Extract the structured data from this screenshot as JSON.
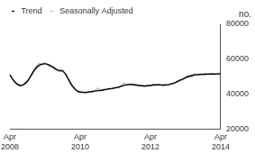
{
  "chart_data": {
    "type": "line",
    "ylabel": "no.",
    "categories": [
      "Apr 2008",
      null,
      null,
      null,
      null,
      null,
      null,
      null,
      null,
      null,
      null,
      null,
      null,
      null,
      null,
      null,
      null,
      null,
      null,
      null,
      null,
      null,
      null,
      null,
      "Apr 2010",
      null,
      null,
      null,
      null,
      null,
      null,
      null,
      null,
      null,
      null,
      null,
      null,
      null,
      null,
      null,
      null,
      null,
      null,
      null,
      null,
      null,
      null,
      null,
      "Apr 2012",
      null,
      null,
      null,
      null,
      null,
      null,
      null,
      null,
      null,
      null,
      null,
      null,
      null,
      null,
      null,
      null,
      null,
      null,
      null,
      null,
      null,
      null,
      null,
      "Apr 2014"
    ],
    "series": [
      {
        "name": "Trend",
        "color": "#000000",
        "values": [
          51000,
          48500,
          46500,
          45200,
          45000,
          45800,
          47500,
          50000,
          52800,
          55000,
          56500,
          57200,
          57400,
          57000,
          56200,
          55000,
          54000,
          53500,
          53200,
          51500,
          48500,
          45500,
          43300,
          41800,
          41200,
          41000,
          41000,
          41200,
          41500,
          41800,
          42000,
          42200,
          42500,
          42800,
          43000,
          43300,
          43600,
          44000,
          44500,
          45000,
          45400,
          45600,
          45500,
          45200,
          45000,
          44800,
          44700,
          44800,
          45000,
          45200,
          45300,
          45300,
          45200,
          45200,
          45400,
          45800,
          46300,
          47000,
          47800,
          48600,
          49400,
          50100,
          50600,
          51000,
          51200,
          51300,
          51400,
          51400,
          51500,
          51500,
          51500,
          51600,
          51700
        ]
      },
      {
        "name": "Seasonally Adjusted",
        "color": "#aaaaaa",
        "values": [
          51500,
          48000,
          46000,
          45500,
          44800,
          46200,
          47000,
          50500,
          53500,
          56000,
          57500,
          57000,
          58000,
          56500,
          55500,
          55800,
          53500,
          53000,
          54000,
          51000,
          48000,
          45000,
          43800,
          41500,
          41000,
          41500,
          40800,
          41600,
          41200,
          42000,
          43500,
          41800,
          42300,
          42500,
          43400,
          43000,
          44000,
          43600,
          44800,
          46500,
          45000,
          45800,
          45200,
          45600,
          44600,
          45200,
          44300,
          45000,
          44600,
          45800,
          45000,
          45700,
          44800,
          45600,
          45000,
          46200,
          46000,
          47500,
          48300,
          48000,
          49900,
          50500,
          49600,
          51600,
          50500,
          51800,
          51000,
          51900,
          51200,
          51900,
          51200,
          51800,
          51500
        ]
      }
    ],
    "ylim": [
      20000,
      80000
    ],
    "yticks": [
      20000,
      40000,
      60000,
      80000
    ],
    "grid": false,
    "legend": "top left"
  }
}
